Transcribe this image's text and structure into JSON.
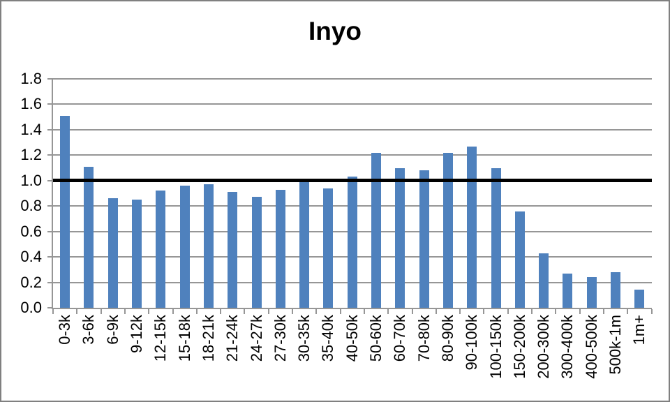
{
  "chart_data": {
    "type": "bar",
    "title": "Inyo",
    "categories": [
      "0-3k",
      "3-6k",
      "6-9k",
      "9-12k",
      "12-15k",
      "15-18k",
      "18-21k",
      "21-24k",
      "24-27k",
      "27-30k",
      "30-35k",
      "35-40k",
      "40-50k",
      "50-60k",
      "60-70k",
      "70-80k",
      "80-90k",
      "90-100k",
      "100-150k",
      "150-200k",
      "200-300k",
      "300-400k",
      "400-500k",
      "500k-1m",
      "1m+"
    ],
    "values": [
      1.51,
      1.11,
      0.86,
      0.85,
      0.92,
      0.96,
      0.97,
      0.91,
      0.87,
      0.93,
      0.99,
      0.94,
      1.03,
      1.22,
      1.1,
      1.08,
      1.22,
      1.27,
      1.1,
      0.76,
      0.43,
      0.27,
      0.24,
      0.28,
      0.14
    ],
    "xlabel": "",
    "ylabel": "",
    "ylim": [
      0,
      1.8
    ],
    "ytick_step": 0.2,
    "ytick_labels": [
      "0.0",
      "0.2",
      "0.4",
      "0.6",
      "0.8",
      "1.0",
      "1.2",
      "1.4",
      "1.6",
      "1.8"
    ],
    "reference_line": {
      "value": 1.0
    },
    "grid": true,
    "legend": false,
    "colors": {
      "bar": "#4F81BD",
      "gridline": "#969696",
      "axis": "#969696",
      "reference_line": "#000000",
      "text": "#000000",
      "background": "#FFFFFF",
      "border": "#808080"
    }
  }
}
